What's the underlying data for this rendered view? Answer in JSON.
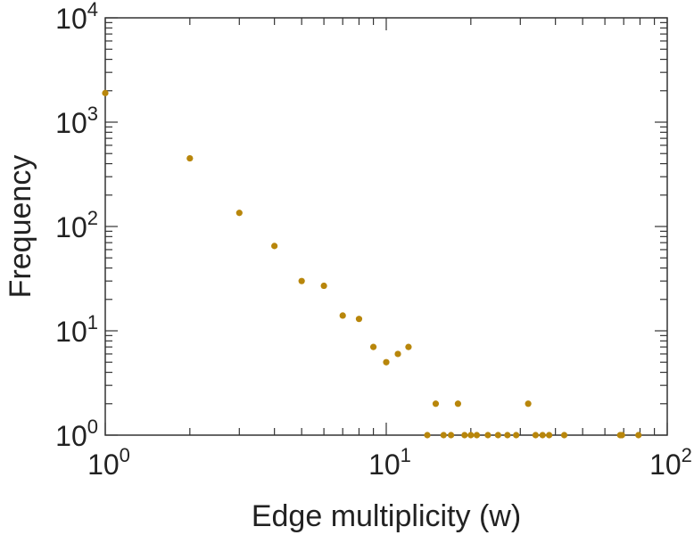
{
  "chart_data": {
    "type": "scatter",
    "x_scale": "log",
    "y_scale": "log",
    "xlabel": "Edge multiplicity (w)",
    "ylabel": "Frequency",
    "xlim": [
      1,
      100
    ],
    "ylim": [
      1,
      10000
    ],
    "x_ticks": [
      {
        "value": 1,
        "base": "10",
        "exp": "0"
      },
      {
        "value": 10,
        "base": "10",
        "exp": "1"
      },
      {
        "value": 100,
        "base": "10",
        "exp": "2"
      }
    ],
    "y_ticks": [
      {
        "value": 1,
        "base": "10",
        "exp": "0"
      },
      {
        "value": 10,
        "base": "10",
        "exp": "1"
      },
      {
        "value": 100,
        "base": "10",
        "exp": "2"
      },
      {
        "value": 1000,
        "base": "10",
        "exp": "3"
      },
      {
        "value": 10000,
        "base": "10",
        "exp": "4"
      }
    ],
    "grid": false,
    "marker_color": "#b8860b",
    "series": [
      {
        "points": [
          {
            "x": 1,
            "y": 1900
          },
          {
            "x": 2,
            "y": 450
          },
          {
            "x": 3,
            "y": 135
          },
          {
            "x": 4,
            "y": 65
          },
          {
            "x": 5,
            "y": 30
          },
          {
            "x": 6,
            "y": 27
          },
          {
            "x": 7,
            "y": 14
          },
          {
            "x": 8,
            "y": 13
          },
          {
            "x": 9,
            "y": 7
          },
          {
            "x": 10,
            "y": 5
          },
          {
            "x": 11,
            "y": 6
          },
          {
            "x": 12,
            "y": 7
          },
          {
            "x": 14,
            "y": 1
          },
          {
            "x": 15,
            "y": 2
          },
          {
            "x": 16,
            "y": 1
          },
          {
            "x": 17,
            "y": 1
          },
          {
            "x": 18,
            "y": 2
          },
          {
            "x": 19,
            "y": 1
          },
          {
            "x": 20,
            "y": 1
          },
          {
            "x": 21,
            "y": 1
          },
          {
            "x": 23,
            "y": 1
          },
          {
            "x": 25,
            "y": 1
          },
          {
            "x": 27,
            "y": 1
          },
          {
            "x": 29,
            "y": 1
          },
          {
            "x": 32,
            "y": 2
          },
          {
            "x": 34,
            "y": 1
          },
          {
            "x": 36,
            "y": 1
          },
          {
            "x": 38,
            "y": 1
          },
          {
            "x": 43,
            "y": 1
          },
          {
            "x": 68,
            "y": 1
          },
          {
            "x": 69,
            "y": 1
          },
          {
            "x": 79,
            "y": 1
          }
        ]
      }
    ]
  }
}
